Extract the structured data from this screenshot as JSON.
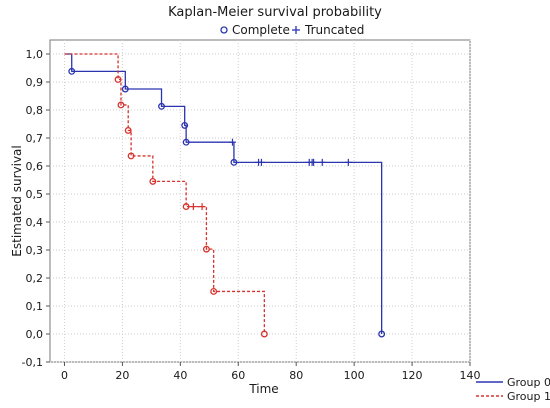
{
  "chart_data": {
    "type": "line",
    "title": "Kaplan-Meier survival probability",
    "xlabel": "Time",
    "ylabel": "Estimated survival",
    "xlim": [
      -5,
      140
    ],
    "ylim": [
      -0.1,
      1.05
    ],
    "xticks": [
      "0",
      "20",
      "40",
      "60",
      "80",
      "100",
      "120",
      "140"
    ],
    "yticks": [
      "-0,1",
      "0,0",
      "0,1",
      "0,2",
      "0,3",
      "0,4",
      "0,5",
      "0,6",
      "0,7",
      "0,8",
      "0,9",
      "1,0"
    ],
    "grid": true,
    "legend_top": {
      "placement": "top-center",
      "items": [
        {
          "marker": "circle",
          "label": "Complete"
        },
        {
          "marker": "plus",
          "label": "Truncated"
        }
      ]
    },
    "legend_bottom": {
      "placement": "bottom-right",
      "items": [
        {
          "label": "Group 0",
          "style": "solid",
          "color": "#2b35b0"
        },
        {
          "label": "Group 1",
          "style": "dashed",
          "color": "#d6332e"
        }
      ]
    },
    "series": [
      {
        "name": "Group 0",
        "color": "#2b35b0",
        "style": "solid",
        "steps": [
          {
            "x": 0,
            "y": 1.0
          },
          {
            "x": 2.5,
            "y": 0.938
          },
          {
            "x": 21,
            "y": 0.875
          },
          {
            "x": 33.5,
            "y": 0.813
          },
          {
            "x": 41.5,
            "y": 0.745
          },
          {
            "x": 42,
            "y": 0.685
          },
          {
            "x": 58.5,
            "y": 0.613
          },
          {
            "x": 109.5,
            "y": 0.0
          }
        ],
        "events": [
          2.5,
          21,
          33.5,
          41.5,
          42,
          58.5,
          109.5
        ],
        "censored": [
          58,
          67,
          68,
          84.5,
          85.5,
          86,
          89,
          98
        ]
      },
      {
        "name": "Group 1",
        "color": "#d6332e",
        "style": "dashed",
        "steps": [
          {
            "x": 0,
            "y": 1.0
          },
          {
            "x": 18.5,
            "y": 0.909
          },
          {
            "x": 19.5,
            "y": 0.818
          },
          {
            "x": 22,
            "y": 0.727
          },
          {
            "x": 23,
            "y": 0.636
          },
          {
            "x": 30.5,
            "y": 0.545
          },
          {
            "x": 42,
            "y": 0.455
          },
          {
            "x": 49,
            "y": 0.303
          },
          {
            "x": 51.5,
            "y": 0.152
          },
          {
            "x": 69,
            "y": 0.0
          }
        ],
        "events": [
          18.5,
          19.5,
          22,
          23,
          30.5,
          42,
          49,
          51.5,
          69
        ],
        "censored": [
          44.5,
          47.5
        ]
      }
    ]
  }
}
